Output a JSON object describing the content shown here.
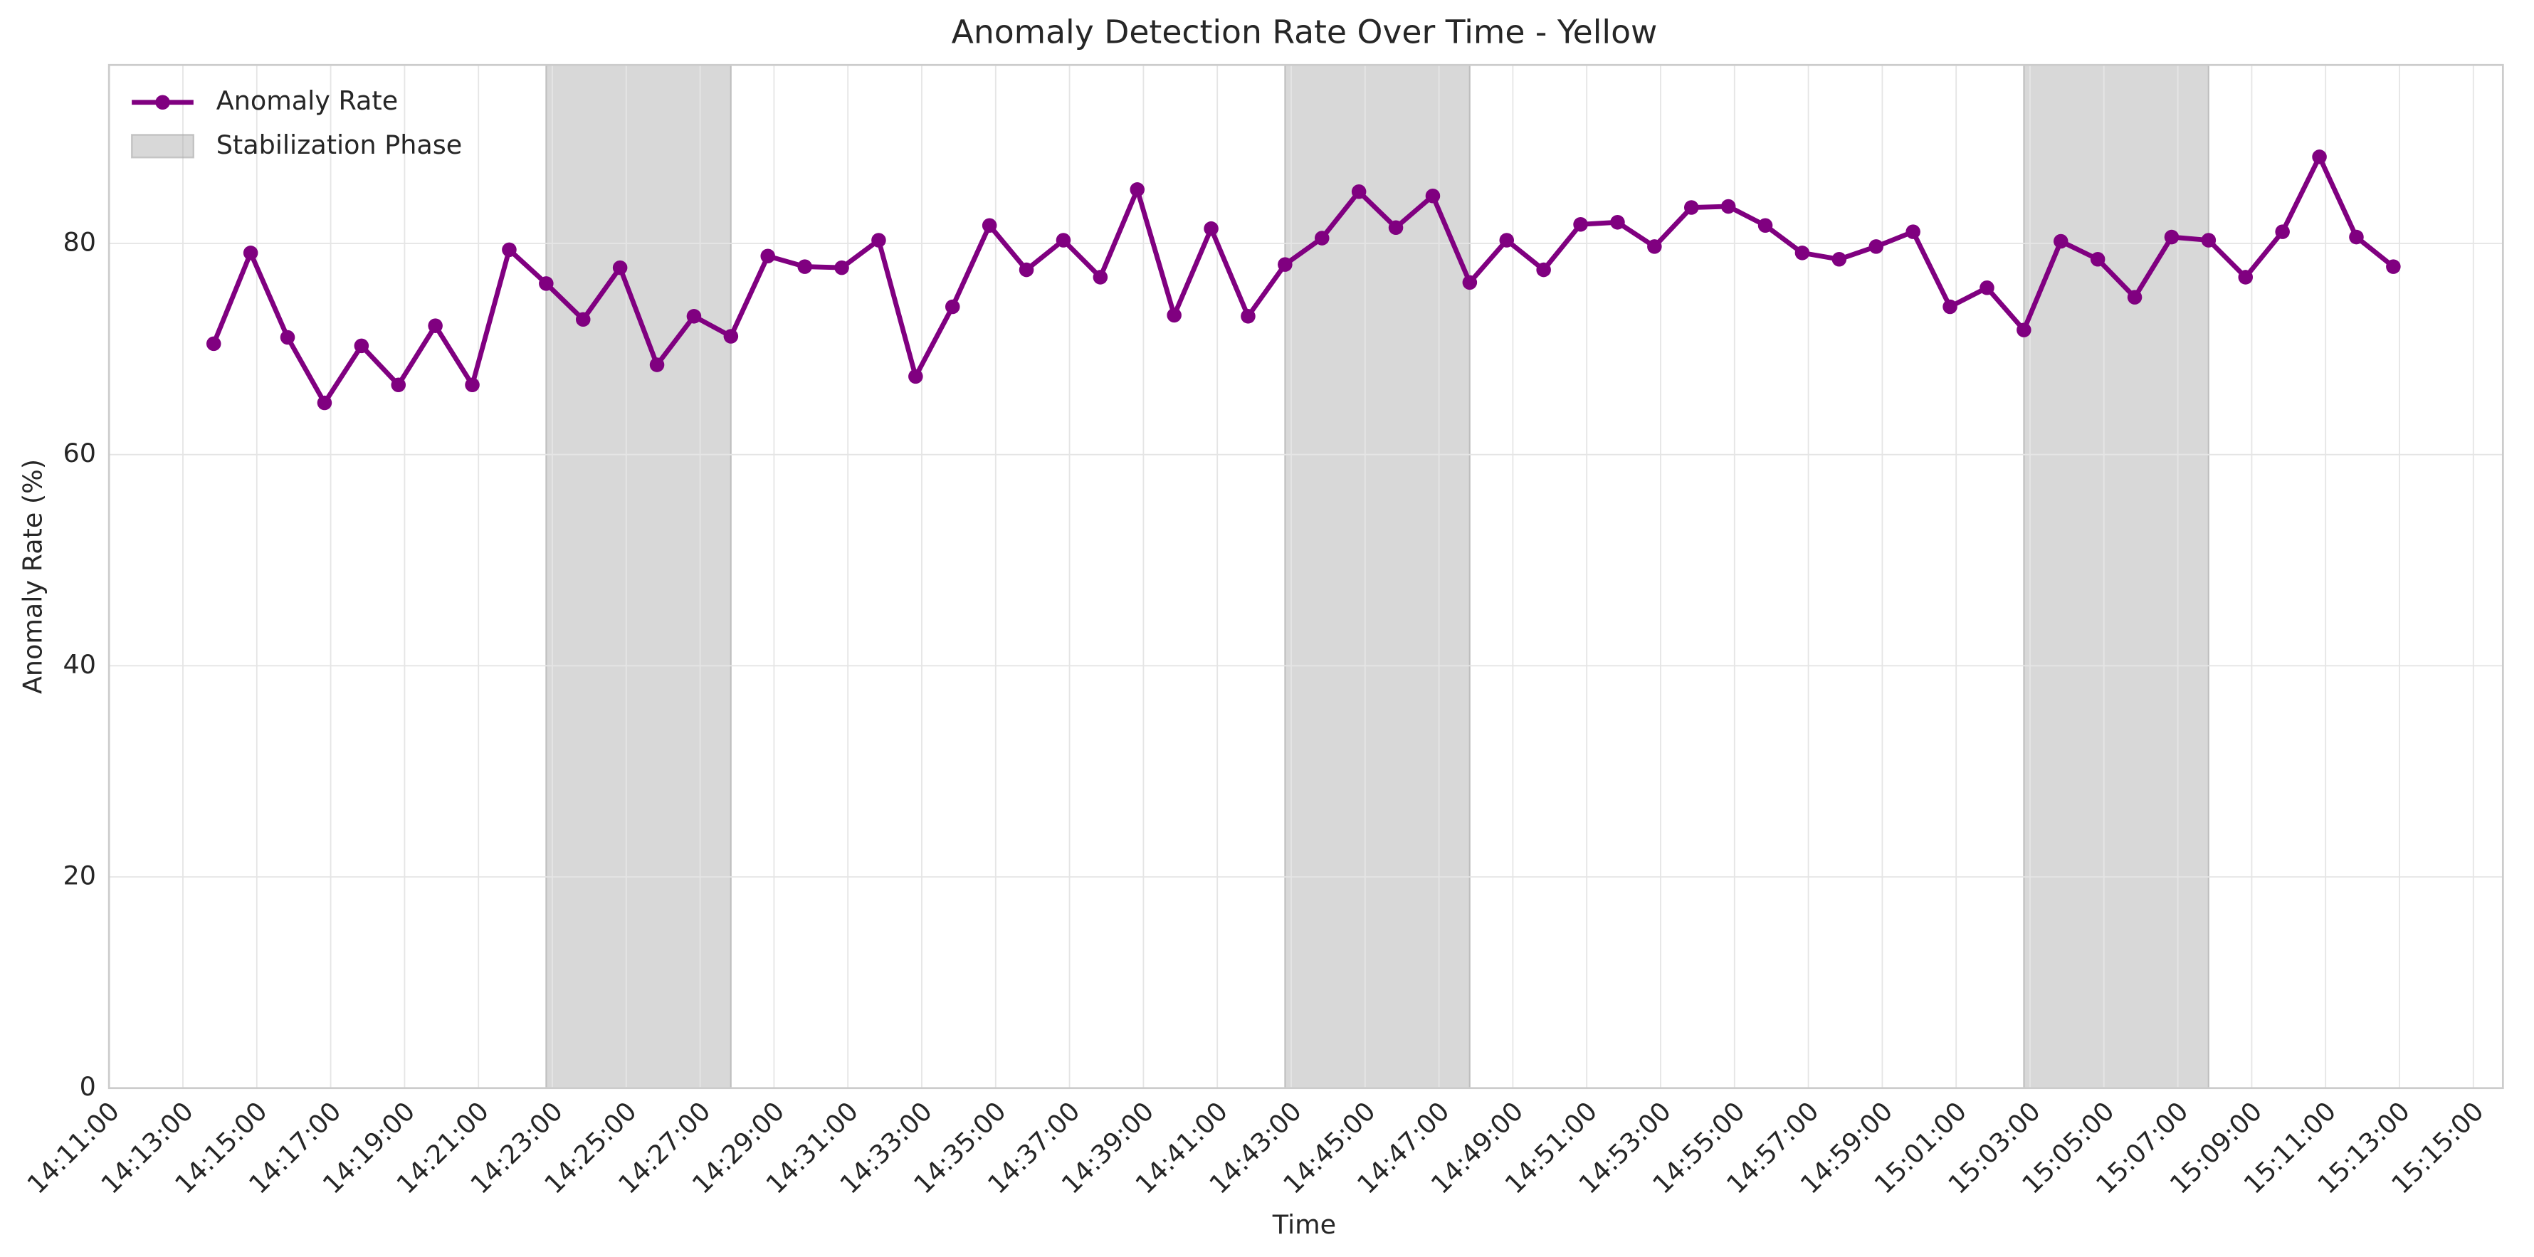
{
  "chart_data": {
    "type": "line",
    "title": "Anomaly Detection Rate Over Time - Yellow",
    "x_label": "Time",
    "y_label": "Anomaly Rate (%)",
    "x": [
      "14:13:50",
      "14:14:50",
      "14:15:50",
      "14:16:50",
      "14:17:50",
      "14:18:50",
      "14:19:50",
      "14:20:50",
      "14:21:50",
      "14:22:50",
      "14:23:50",
      "14:24:50",
      "14:25:50",
      "14:26:50",
      "14:27:50",
      "14:28:50",
      "14:29:50",
      "14:30:50",
      "14:31:50",
      "14:32:50",
      "14:33:50",
      "14:34:50",
      "14:35:50",
      "14:36:50",
      "14:37:50",
      "14:38:50",
      "14:39:50",
      "14:40:50",
      "14:41:50",
      "14:42:50",
      "14:43:50",
      "14:44:50",
      "14:45:50",
      "14:46:50",
      "14:47:50",
      "14:48:50",
      "14:49:50",
      "14:50:50",
      "14:51:50",
      "14:52:50",
      "14:53:50",
      "14:54:50",
      "14:55:50",
      "14:56:50",
      "14:57:50",
      "14:58:50",
      "14:59:50",
      "15:00:50",
      "15:01:50",
      "15:02:50",
      "15:03:50",
      "15:04:50",
      "15:05:50",
      "15:06:50",
      "15:07:50",
      "15:08:50",
      "15:09:50",
      "15:10:50",
      "15:11:50",
      "15:12:50"
    ],
    "series": [
      {
        "name": "Anomaly Rate",
        "color": "#800080",
        "values": [
          70.5,
          79.1,
          71.1,
          64.9,
          70.3,
          66.6,
          72.2,
          66.6,
          79.4,
          76.2,
          72.8,
          77.7,
          68.5,
          73.1,
          71.2,
          78.8,
          77.8,
          77.7,
          80.3,
          67.4,
          74.0,
          81.7,
          77.5,
          80.3,
          76.8,
          85.1,
          73.2,
          81.4,
          73.1,
          78.0,
          80.5,
          84.9,
          81.5,
          84.5,
          76.3,
          80.3,
          77.5,
          81.8,
          82.0,
          79.7,
          83.4,
          83.5,
          81.7,
          79.1,
          78.5,
          79.7,
          81.1,
          74.0,
          75.8,
          71.8,
          80.2,
          78.5,
          74.9,
          80.6,
          80.3,
          76.8,
          81.1,
          88.2,
          80.6,
          77.8
        ]
      }
    ],
    "shaded_regions": {
      "name": "Stabilization Phase",
      "color": "#a9a9a9",
      "regions": [
        {
          "start": "14:22:50",
          "end": "14:27:50"
        },
        {
          "start": "14:42:50",
          "end": "14:47:50"
        },
        {
          "start": "15:02:50",
          "end": "15:07:50"
        }
      ]
    },
    "xlim": [
      "14:11:00",
      "15:15:48"
    ],
    "xticks": [
      "14:11:00",
      "14:13:00",
      "14:15:00",
      "14:17:00",
      "14:19:00",
      "14:21:00",
      "14:23:00",
      "14:25:00",
      "14:27:00",
      "14:29:00",
      "14:31:00",
      "14:33:00",
      "14:35:00",
      "14:37:00",
      "14:39:00",
      "14:41:00",
      "14:43:00",
      "14:45:00",
      "14:47:00",
      "14:49:00",
      "14:51:00",
      "14:53:00",
      "14:55:00",
      "14:57:00",
      "14:59:00",
      "15:01:00",
      "15:03:00",
      "15:05:00",
      "15:07:00",
      "15:09:00",
      "15:11:00",
      "15:13:00",
      "15:15:00"
    ],
    "ylim": [
      0,
      96.9
    ],
    "yticks": [
      0,
      20,
      40,
      60,
      80
    ],
    "grid": true,
    "legend": "upper-left"
  }
}
